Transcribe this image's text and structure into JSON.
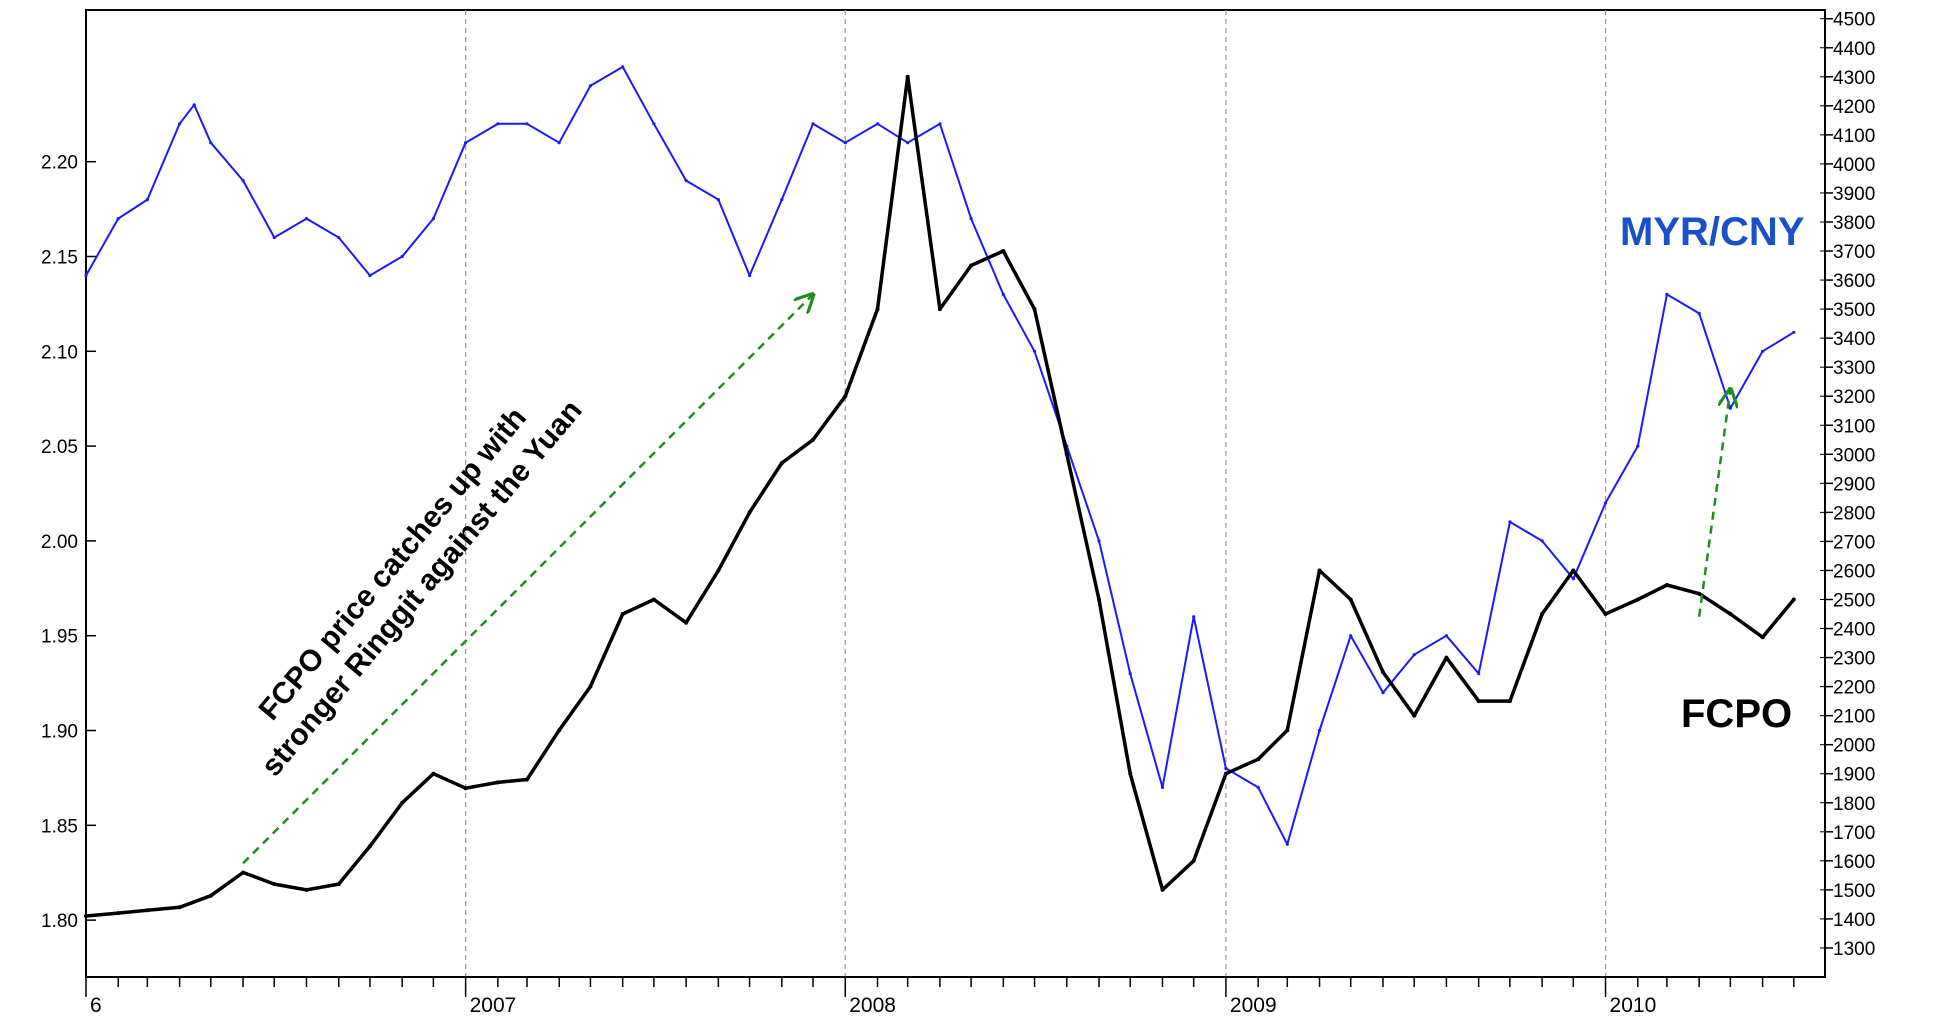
{
  "chart_data": {
    "type": "line",
    "x_axis": {
      "type": "date",
      "range": [
        "2006-01-01",
        "2010-07-31"
      ],
      "labels": [
        {
          "text": "6",
          "date": "2006-01-01"
        },
        {
          "text": "2007",
          "date": "2007-01-01"
        },
        {
          "text": "2008",
          "date": "2008-01-01"
        },
        {
          "text": "2009",
          "date": "2009-01-01"
        },
        {
          "text": "2010",
          "date": "2010-01-01"
        }
      ],
      "grid": "vertical dashed at year starts"
    },
    "y_left": {
      "range": [
        1.77,
        2.28
      ],
      "ticks": [
        1.8,
        1.85,
        1.9,
        1.95,
        2.0,
        2.05,
        2.1,
        2.15,
        2.2
      ],
      "tick_labels": [
        "1.80",
        "1.85",
        "1.90",
        "1.95",
        "2.00",
        "2.05",
        "2.10",
        "2.15",
        "2.20"
      ]
    },
    "y_right": {
      "range": [
        1200,
        4530
      ],
      "ticks": [
        1300,
        1400,
        1500,
        1600,
        1700,
        1800,
        1900,
        2000,
        2100,
        2200,
        2300,
        2400,
        2500,
        2600,
        2700,
        2800,
        2900,
        3000,
        3100,
        3200,
        3300,
        3400,
        3500,
        3600,
        3700,
        3800,
        3900,
        4000,
        4100,
        4200,
        4300,
        4400,
        4500
      ],
      "tick_labels": [
        "1300",
        "1400",
        "1500",
        "1600",
        "1700",
        "1800",
        "1900",
        "2000",
        "2100",
        "2200",
        "2300",
        "2400",
        "2500",
        "2600",
        "2700",
        "2800",
        "2900",
        "3000",
        "3100",
        "3200",
        "3300",
        "3400",
        "3500",
        "3600",
        "3700",
        "3800",
        "3900",
        "4000",
        "4100",
        "4200",
        "4300",
        "4400",
        "4500"
      ]
    },
    "series": [
      {
        "name": "MYR/CNY",
        "axis": "left",
        "color": "#1a1aff",
        "points": [
          [
            "2006-01-01",
            2.14
          ],
          [
            "2006-02-01",
            2.17
          ],
          [
            "2006-03-01",
            2.18
          ],
          [
            "2006-04-01",
            2.22
          ],
          [
            "2006-04-15",
            2.23
          ],
          [
            "2006-05-01",
            2.21
          ],
          [
            "2006-06-01",
            2.19
          ],
          [
            "2006-07-01",
            2.16
          ],
          [
            "2006-08-01",
            2.17
          ],
          [
            "2006-09-01",
            2.16
          ],
          [
            "2006-10-01",
            2.14
          ],
          [
            "2006-11-01",
            2.15
          ],
          [
            "2006-12-01",
            2.17
          ],
          [
            "2007-01-01",
            2.21
          ],
          [
            "2007-02-01",
            2.22
          ],
          [
            "2007-03-01",
            2.22
          ],
          [
            "2007-04-01",
            2.21
          ],
          [
            "2007-05-01",
            2.24
          ],
          [
            "2007-06-01",
            2.25
          ],
          [
            "2007-07-01",
            2.22
          ],
          [
            "2007-08-01",
            2.19
          ],
          [
            "2007-09-01",
            2.18
          ],
          [
            "2007-10-01",
            2.14
          ],
          [
            "2007-11-01",
            2.18
          ],
          [
            "2007-12-01",
            2.22
          ],
          [
            "2008-01-01",
            2.21
          ],
          [
            "2008-02-01",
            2.22
          ],
          [
            "2008-03-01",
            2.21
          ],
          [
            "2008-04-01",
            2.22
          ],
          [
            "2008-05-01",
            2.17
          ],
          [
            "2008-06-01",
            2.13
          ],
          [
            "2008-07-01",
            2.1
          ],
          [
            "2008-08-01",
            2.05
          ],
          [
            "2008-09-01",
            2.0
          ],
          [
            "2008-10-01",
            1.93
          ],
          [
            "2008-11-01",
            1.87
          ],
          [
            "2008-12-01",
            1.96
          ],
          [
            "2009-01-01",
            1.88
          ],
          [
            "2009-02-01",
            1.87
          ],
          [
            "2009-03-01",
            1.84
          ],
          [
            "2009-04-01",
            1.9
          ],
          [
            "2009-05-01",
            1.95
          ],
          [
            "2009-06-01",
            1.92
          ],
          [
            "2009-07-01",
            1.94
          ],
          [
            "2009-08-01",
            1.95
          ],
          [
            "2009-09-01",
            1.93
          ],
          [
            "2009-10-01",
            2.01
          ],
          [
            "2009-11-01",
            2.0
          ],
          [
            "2009-12-01",
            1.98
          ],
          [
            "2010-01-01",
            2.02
          ],
          [
            "2010-02-01",
            2.05
          ],
          [
            "2010-03-01",
            2.13
          ],
          [
            "2010-04-01",
            2.12
          ],
          [
            "2010-05-01",
            2.07
          ],
          [
            "2010-06-01",
            2.1
          ],
          [
            "2010-07-01",
            2.11
          ]
        ]
      },
      {
        "name": "FCPO",
        "axis": "right",
        "color": "#000000",
        "points": [
          [
            "2006-01-01",
            1410
          ],
          [
            "2006-02-01",
            1420
          ],
          [
            "2006-03-01",
            1430
          ],
          [
            "2006-04-01",
            1440
          ],
          [
            "2006-05-01",
            1480
          ],
          [
            "2006-06-01",
            1560
          ],
          [
            "2006-07-01",
            1520
          ],
          [
            "2006-08-01",
            1500
          ],
          [
            "2006-09-01",
            1520
          ],
          [
            "2006-10-01",
            1650
          ],
          [
            "2006-11-01",
            1800
          ],
          [
            "2006-12-01",
            1900
          ],
          [
            "2007-01-01",
            1850
          ],
          [
            "2007-02-01",
            1870
          ],
          [
            "2007-03-01",
            1880
          ],
          [
            "2007-04-01",
            2050
          ],
          [
            "2007-05-01",
            2200
          ],
          [
            "2007-06-01",
            2450
          ],
          [
            "2007-07-01",
            2500
          ],
          [
            "2007-08-01",
            2420
          ],
          [
            "2007-09-01",
            2600
          ],
          [
            "2007-10-01",
            2800
          ],
          [
            "2007-11-01",
            2970
          ],
          [
            "2007-12-01",
            3050
          ],
          [
            "2008-01-01",
            3200
          ],
          [
            "2008-02-01",
            3500
          ],
          [
            "2008-03-01",
            4300
          ],
          [
            "2008-04-01",
            3500
          ],
          [
            "2008-05-01",
            3650
          ],
          [
            "2008-06-01",
            3700
          ],
          [
            "2008-07-01",
            3500
          ],
          [
            "2008-08-01",
            3000
          ],
          [
            "2008-09-01",
            2500
          ],
          [
            "2008-10-01",
            1900
          ],
          [
            "2008-11-01",
            1500
          ],
          [
            "2008-12-01",
            1600
          ],
          [
            "2009-01-01",
            1900
          ],
          [
            "2009-02-01",
            1950
          ],
          [
            "2009-03-01",
            2050
          ],
          [
            "2009-04-01",
            2600
          ],
          [
            "2009-05-01",
            2500
          ],
          [
            "2009-06-01",
            2250
          ],
          [
            "2009-07-01",
            2100
          ],
          [
            "2009-08-01",
            2300
          ],
          [
            "2009-09-01",
            2150
          ],
          [
            "2009-10-01",
            2150
          ],
          [
            "2009-11-01",
            2450
          ],
          [
            "2009-12-01",
            2600
          ],
          [
            "2010-01-01",
            2450
          ],
          [
            "2010-02-01",
            2500
          ],
          [
            "2010-03-01",
            2550
          ],
          [
            "2010-04-01",
            2520
          ],
          [
            "2010-05-01",
            2450
          ],
          [
            "2010-06-01",
            2370
          ],
          [
            "2010-07-01",
            2500
          ]
        ]
      }
    ],
    "annotations": [
      {
        "text": "MYR/CNY",
        "color": "#1a50c8"
      },
      {
        "text": "FCPO",
        "color": "#000000"
      },
      {
        "text_lines": [
          "FCPO price catches up with",
          "stronger Ringgit against the Yuan"
        ],
        "color": "#000000"
      }
    ],
    "arrows": [
      {
        "color": "#228b22",
        "style": "dashed",
        "from": [
          "2006-06-01",
          1.83
        ],
        "to": [
          "2007-12-01",
          2.13
        ]
      },
      {
        "color": "#228b22",
        "style": "dashed",
        "from": [
          "2010-04-01",
          1.96
        ],
        "to": [
          "2010-05-01",
          2.08
        ]
      }
    ]
  }
}
